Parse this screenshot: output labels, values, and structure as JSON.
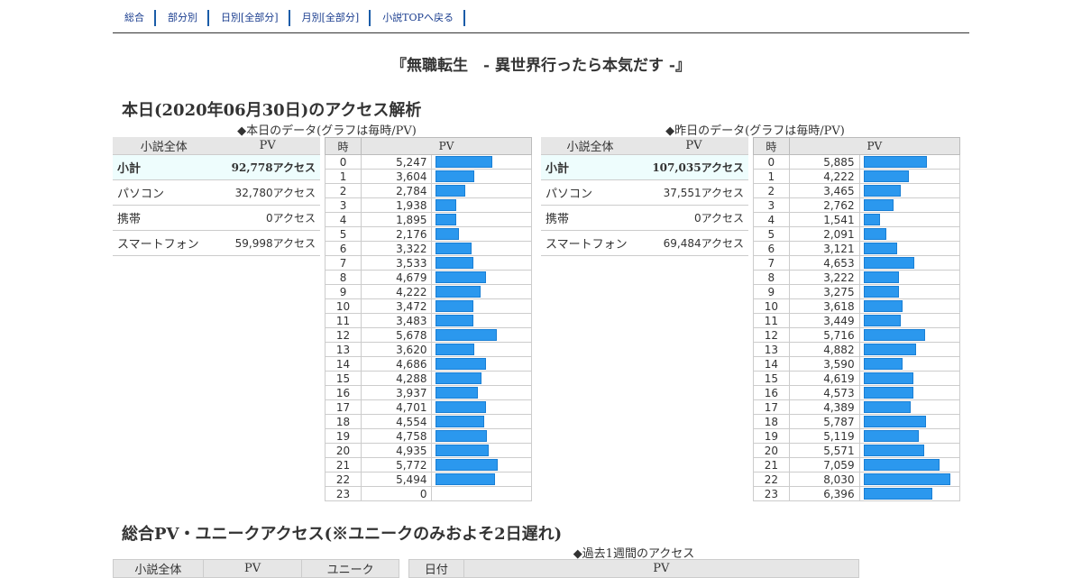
{
  "nav": [
    {
      "label": "総合"
    },
    {
      "label": "部分別"
    },
    {
      "label": "日別[全部分]"
    },
    {
      "label": "月別[全部分]"
    },
    {
      "label": "小説TOPへ戻る"
    }
  ],
  "novel_title": "『無職転生　- 異世界行ったら本気だす -』",
  "today_section": {
    "title": "本日(2020年06月30日)のアクセス解析"
  },
  "today": {
    "caption": "◆本日のデータ(グラフは毎時/PV)",
    "summary_headers": [
      "小説全体",
      "PV"
    ],
    "summary_rows": [
      {
        "label": "小計",
        "value": "92,778アクセス"
      },
      {
        "label": "パソコン",
        "value": "32,780アクセス"
      },
      {
        "label": "携帯",
        "value": "0アクセス"
      },
      {
        "label": "スマートフォン",
        "value": "59,998アクセス"
      }
    ],
    "hourly_headers": [
      "時",
      "PV"
    ],
    "hourly_hours": [
      "0",
      "1",
      "2",
      "3",
      "4",
      "5",
      "6",
      "7",
      "8",
      "9",
      "10",
      "11",
      "12",
      "13",
      "14",
      "15",
      "16",
      "17",
      "18",
      "19",
      "20",
      "21",
      "22",
      "23"
    ],
    "hourly_pv": [
      "5,247",
      "3,604",
      "2,784",
      "1,938",
      "1,895",
      "2,176",
      "3,322",
      "3,533",
      "4,679",
      "4,222",
      "3,472",
      "3,483",
      "5,678",
      "3,620",
      "4,686",
      "4,288",
      "3,937",
      "4,701",
      "4,554",
      "4,758",
      "4,935",
      "5,772",
      "5,494",
      "0"
    ],
    "bar_color": "#2b98ee"
  },
  "yesterday": {
    "caption": "◆昨日のデータ(グラフは毎時/PV)",
    "summary_headers": [
      "小説全体",
      "PV"
    ],
    "summary_rows": [
      {
        "label": "小計",
        "value": "107,035アクセス"
      },
      {
        "label": "パソコン",
        "value": "37,551アクセス"
      },
      {
        "label": "携帯",
        "value": "0アクセス"
      },
      {
        "label": "スマートフォン",
        "value": "69,484アクセス"
      }
    ],
    "hourly_headers": [
      "時",
      "PV"
    ],
    "hourly_hours": [
      "0",
      "1",
      "2",
      "3",
      "4",
      "5",
      "6",
      "7",
      "8",
      "9",
      "10",
      "11",
      "12",
      "13",
      "14",
      "15",
      "16",
      "17",
      "18",
      "19",
      "20",
      "21",
      "22",
      "23"
    ],
    "hourly_pv": [
      "5,885",
      "4,222",
      "3,465",
      "2,762",
      "1,541",
      "2,091",
      "3,121",
      "4,653",
      "3,222",
      "3,275",
      "3,618",
      "3,449",
      "5,716",
      "4,882",
      "3,590",
      "4,619",
      "4,573",
      "4,389",
      "5,787",
      "5,119",
      "5,571",
      "7,059",
      "8,030",
      "6,396"
    ],
    "bar_color": "#2b98ee"
  },
  "total_section": {
    "title": "総合PV・ユニークアクセス(※ユニークのみおよそ2日遅れ)",
    "caption": "◆過去1週間のアクセス",
    "left_headers": [
      "小説全体",
      "PV",
      "ユニーク"
    ],
    "right_headers": [
      "日付",
      "PV"
    ]
  }
}
